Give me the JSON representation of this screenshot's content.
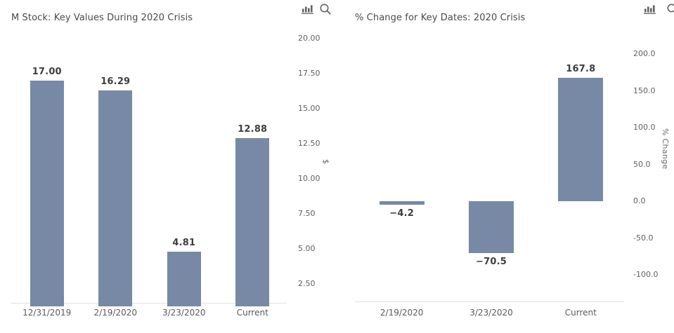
{
  "page": {
    "background": "#ffffff"
  },
  "toolbar": {
    "icons": [
      "bar-chart-icon",
      "zoom-icon"
    ]
  },
  "chart_data": [
    {
      "type": "bar",
      "title": "M Stock: Key Values During 2020 Crisis",
      "categories": [
        "12/31/2019",
        "2/19/2020",
        "3/23/2020",
        "Current"
      ],
      "values": [
        17.0,
        16.29,
        4.81,
        12.88
      ],
      "value_labels": [
        "17.00",
        "16.29",
        "4.81",
        "12.88"
      ],
      "ylabel": "$",
      "yticks": [
        20,
        17.5,
        15,
        12.5,
        10,
        7.5,
        5,
        2.5
      ],
      "ytick_labels": [
        "20.00",
        "17.50",
        "15.00",
        "12.50",
        "10.00",
        "7.50",
        "5.00",
        "2.50"
      ],
      "ylim": [
        1.1,
        20.5
      ],
      "grid": false,
      "legend": null,
      "bar_color": "#7789a4"
    },
    {
      "type": "bar",
      "title": "% Change for Key Dates: 2020 Crisis",
      "categories": [
        "2/19/2020",
        "3/23/2020",
        "Current"
      ],
      "values": [
        -4.2,
        -70.5,
        167.8
      ],
      "value_labels": [
        "−4.2",
        "−70.5",
        "167.8"
      ],
      "ylabel": "% Change",
      "yticks": [
        200,
        150,
        100,
        50,
        0,
        -50,
        -100
      ],
      "ytick_labels": [
        "200.0",
        "150.0",
        "100.0",
        "50.0",
        "0.0",
        "-50.0",
        "-100.0"
      ],
      "ylim": [
        -138,
        205
      ],
      "grid": false,
      "legend": null,
      "bar_color": "#7789a4"
    }
  ]
}
